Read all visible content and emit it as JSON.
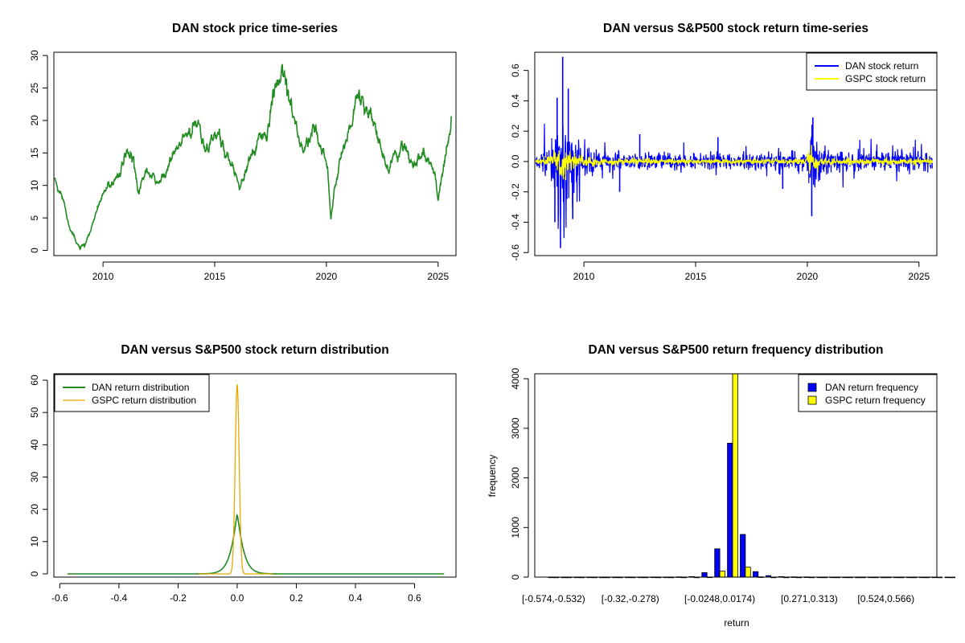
{
  "chart_data": [
    {
      "id": "price",
      "type": "line",
      "title": "DAN stock price time-series",
      "xlabel": "",
      "ylabel": "",
      "xlim": [
        2007.8,
        2025.8
      ],
      "ylim": [
        -0.8,
        30.5
      ],
      "xticks": [
        2010,
        2015,
        2020,
        2025
      ],
      "yticks": [
        0,
        5,
        10,
        15,
        20,
        25,
        30
      ],
      "color": "#228B22",
      "series": [
        {
          "name": "DAN stock price",
          "x": [
            2007.85,
            2008.0,
            2008.2,
            2008.4,
            2008.6,
            2008.8,
            2008.95,
            2009.1,
            2009.25,
            2009.45,
            2009.7,
            2010.0,
            2010.3,
            2010.7,
            2011.0,
            2011.35,
            2011.6,
            2011.9,
            2012.2,
            2012.5,
            2012.8,
            2013.1,
            2013.4,
            2013.7,
            2014.0,
            2014.3,
            2014.6,
            2014.9,
            2015.2,
            2015.5,
            2015.8,
            2016.1,
            2016.4,
            2016.7,
            2017.0,
            2017.3,
            2017.6,
            2017.9,
            2018.1,
            2018.4,
            2018.7,
            2018.95,
            2019.2,
            2019.5,
            2019.8,
            2020.05,
            2020.2,
            2020.35,
            2020.6,
            2020.9,
            2021.2,
            2021.45,
            2021.7,
            2022.0,
            2022.3,
            2022.55,
            2022.8,
            2023.1,
            2023.4,
            2023.7,
            2024.0,
            2024.3,
            2024.6,
            2024.85,
            2025.0,
            2025.2,
            2025.35,
            2025.5,
            2025.6
          ],
          "y": [
            11,
            9,
            8.5,
            5,
            3,
            1,
            0.5,
            0.4,
            1,
            3,
            6,
            8.5,
            10,
            12,
            14,
            14.5,
            9,
            12,
            11,
            10,
            12.5,
            14,
            16,
            17.5,
            18,
            19.5,
            16,
            17.5,
            17.5,
            15,
            13,
            10.5,
            12.5,
            15,
            17,
            18,
            22,
            27,
            28,
            24,
            18,
            15,
            17,
            19,
            15,
            13,
            5,
            9,
            14,
            17,
            21,
            24,
            22,
            21,
            17,
            14,
            12,
            15,
            16,
            14,
            12.5,
            15,
            13,
            12,
            8,
            12,
            15,
            17,
            19
          ]
        }
      ]
    },
    {
      "id": "returns",
      "type": "line",
      "title": "DAN versus S&P500 stock return time-series",
      "xlabel": "",
      "ylabel": "",
      "xlim": [
        2007.8,
        2025.8
      ],
      "ylim": [
        -0.62,
        0.72
      ],
      "xticks": [
        2010,
        2015,
        2020,
        2025
      ],
      "yticks": [
        -0.6,
        -0.4,
        -0.2,
        0.0,
        0.2,
        0.4,
        0.6
      ],
      "legend": {
        "position": "top-right",
        "entries": [
          "DAN stock return",
          "GSPC stock return"
        ]
      },
      "series": [
        {
          "name": "DAN stock return",
          "color": "#0000FF",
          "start": 2007.85,
          "end": 2025.6
        },
        {
          "name": "GSPC stock return",
          "color": "#FFFF00",
          "start": 2007.85,
          "end": 2025.6
        }
      ],
      "volatility_profile": {
        "x": [
          2007.85,
          2008.5,
          2008.8,
          2009.0,
          2009.3,
          2009.7,
          2010.5,
          2012.0,
          2015.0,
          2018.0,
          2019.9,
          2020.2,
          2020.5,
          2021.0,
          2023.0,
          2025.6
        ],
        "dan": [
          0.035,
          0.05,
          0.2,
          0.28,
          0.18,
          0.08,
          0.045,
          0.035,
          0.03,
          0.035,
          0.035,
          0.17,
          0.07,
          0.045,
          0.04,
          0.04
        ],
        "gspc": [
          0.01,
          0.015,
          0.045,
          0.055,
          0.035,
          0.02,
          0.012,
          0.01,
          0.008,
          0.009,
          0.01,
          0.045,
          0.02,
          0.012,
          0.011,
          0.01
        ]
      },
      "spikes": [
        {
          "x": 2009.05,
          "y": 0.69
        },
        {
          "x": 2008.95,
          "y": -0.57
        },
        {
          "x": 2009.3,
          "y": 0.48
        },
        {
          "x": 2008.8,
          "y": 0.42
        },
        {
          "x": 2008.7,
          "y": -0.4
        },
        {
          "x": 2009.5,
          "y": -0.38
        },
        {
          "x": 2020.25,
          "y": 0.29
        },
        {
          "x": 2020.2,
          "y": -0.36
        },
        {
          "x": 2012.5,
          "y": 0.18
        },
        {
          "x": 2016.0,
          "y": 0.16
        },
        {
          "x": 2011.6,
          "y": -0.2
        },
        {
          "x": 2018.9,
          "y": -0.18
        }
      ]
    },
    {
      "id": "density",
      "type": "line",
      "title": "DAN versus S&P500 stock return distribution",
      "xlabel": "",
      "ylabel": "",
      "xlim": [
        -0.62,
        0.74
      ],
      "ylim": [
        -1,
        62
      ],
      "xticks": [
        -0.6,
        -0.4,
        -0.2,
        0.0,
        0.2,
        0.4,
        0.6
      ],
      "yticks": [
        0,
        10,
        20,
        30,
        40,
        50,
        60
      ],
      "legend": {
        "position": "top-left",
        "entries": [
          "DAN return distribution",
          "GSPC return distribution"
        ]
      },
      "series": [
        {
          "name": "DAN return distribution",
          "color": "#228B22",
          "x_range": [
            -0.574,
            0.7
          ],
          "peak": 18.5,
          "scale": 0.02,
          "shape": "laplace"
        },
        {
          "name": "GSPC return distribution",
          "color": "#E6A800",
          "x_range": [
            -0.13,
            0.12
          ],
          "peak": 58.5,
          "sigma": 0.0068,
          "shape": "gaussian"
        }
      ]
    },
    {
      "id": "freq",
      "type": "bar",
      "title": "DAN versus S&P500 return frequency distribution",
      "xlabel": "return",
      "ylabel": "frequency",
      "ylim": [
        0,
        4100
      ],
      "yticks": [
        0,
        1000,
        2000,
        3000,
        4000
      ],
      "legend": {
        "position": "top-right",
        "entries": [
          "DAN return frequency",
          "GSPC return frequency"
        ]
      },
      "colors": {
        "dan": "#0000FF",
        "gspc": "#FFFF00"
      },
      "xtick_labels": [
        {
          "index": 0,
          "label": "[-0.574,-0.532)"
        },
        {
          "index": 6,
          "label": "[-0.32,-0.278)"
        },
        {
          "index": 13,
          "label": "[-0.0248,0.0174)"
        },
        {
          "index": 20,
          "label": "[0.271,0.313)"
        },
        {
          "index": 26,
          "label": "[0.524,0.566)"
        }
      ],
      "series": [
        {
          "name": "DAN return frequency",
          "values": [
            1,
            0,
            1,
            1,
            0,
            1,
            1,
            1,
            2,
            1,
            5,
            10,
            90,
            570,
            2700,
            860,
            110,
            30,
            10,
            5,
            3,
            1,
            1,
            1,
            0,
            1,
            0,
            1,
            1,
            1,
            1,
            1
          ]
        },
        {
          "name": "GSPC return frequency",
          "values": [
            0,
            0,
            0,
            0,
            0,
            0,
            0,
            0,
            0,
            0,
            0,
            0,
            2,
            120,
            4100,
            200,
            5,
            0,
            0,
            0,
            0,
            0,
            0,
            0,
            0,
            0,
            0,
            0,
            0,
            0,
            0,
            0
          ]
        }
      ]
    }
  ]
}
